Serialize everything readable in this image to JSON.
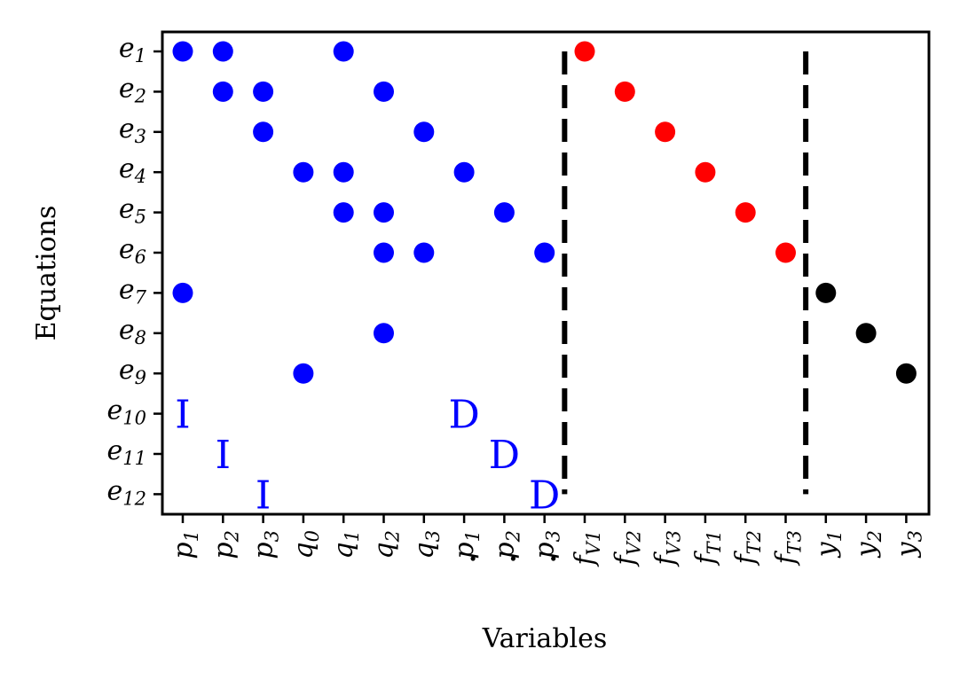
{
  "chart_data": {
    "type": "scatter",
    "xlabel": "Variables",
    "ylabel": "Equations",
    "grid": false,
    "x_categories": [
      {
        "base": "p",
        "sub": "1",
        "dot": false
      },
      {
        "base": "p",
        "sub": "2",
        "dot": false
      },
      {
        "base": "p",
        "sub": "3",
        "dot": false
      },
      {
        "base": "q",
        "sub": "0",
        "dot": false
      },
      {
        "base": "q",
        "sub": "1",
        "dot": false
      },
      {
        "base": "q",
        "sub": "2",
        "dot": false
      },
      {
        "base": "q",
        "sub": "3",
        "dot": false
      },
      {
        "base": "p",
        "sub": "1",
        "dot": true
      },
      {
        "base": "p",
        "sub": "2",
        "dot": true
      },
      {
        "base": "p",
        "sub": "3",
        "dot": true
      },
      {
        "base": "f",
        "sub": "V1",
        "dot": false
      },
      {
        "base": "f",
        "sub": "V2",
        "dot": false
      },
      {
        "base": "f",
        "sub": "V3",
        "dot": false
      },
      {
        "base": "f",
        "sub": "T1",
        "dot": false
      },
      {
        "base": "f",
        "sub": "T2",
        "dot": false
      },
      {
        "base": "f",
        "sub": "T3",
        "dot": false
      },
      {
        "base": "y",
        "sub": "1",
        "dot": false
      },
      {
        "base": "y",
        "sub": "2",
        "dot": false
      },
      {
        "base": "y",
        "sub": "3",
        "dot": false
      }
    ],
    "y_categories": [
      {
        "base": "e",
        "sub": "1"
      },
      {
        "base": "e",
        "sub": "2"
      },
      {
        "base": "e",
        "sub": "3"
      },
      {
        "base": "e",
        "sub": "4"
      },
      {
        "base": "e",
        "sub": "5"
      },
      {
        "base": "e",
        "sub": "6"
      },
      {
        "base": "e",
        "sub": "7"
      },
      {
        "base": "e",
        "sub": "8"
      },
      {
        "base": "e",
        "sub": "9"
      },
      {
        "base": "e",
        "sub": "10"
      },
      {
        "base": "e",
        "sub": "11"
      },
      {
        "base": "e",
        "sub": "12"
      }
    ],
    "colors": {
      "blue": "#0000ff",
      "red": "#ff0000",
      "black": "#000000"
    },
    "points": [
      {
        "x": 0,
        "y": 0,
        "color": "blue"
      },
      {
        "x": 1,
        "y": 0,
        "color": "blue"
      },
      {
        "x": 4,
        "y": 0,
        "color": "blue"
      },
      {
        "x": 10,
        "y": 0,
        "color": "red"
      },
      {
        "x": 1,
        "y": 1,
        "color": "blue"
      },
      {
        "x": 2,
        "y": 1,
        "color": "blue"
      },
      {
        "x": 5,
        "y": 1,
        "color": "blue"
      },
      {
        "x": 11,
        "y": 1,
        "color": "red"
      },
      {
        "x": 2,
        "y": 2,
        "color": "blue"
      },
      {
        "x": 6,
        "y": 2,
        "color": "blue"
      },
      {
        "x": 12,
        "y": 2,
        "color": "red"
      },
      {
        "x": 3,
        "y": 3,
        "color": "blue"
      },
      {
        "x": 4,
        "y": 3,
        "color": "blue"
      },
      {
        "x": 7,
        "y": 3,
        "color": "blue"
      },
      {
        "x": 13,
        "y": 3,
        "color": "red"
      },
      {
        "x": 4,
        "y": 4,
        "color": "blue"
      },
      {
        "x": 5,
        "y": 4,
        "color": "blue"
      },
      {
        "x": 8,
        "y": 4,
        "color": "blue"
      },
      {
        "x": 14,
        "y": 4,
        "color": "red"
      },
      {
        "x": 5,
        "y": 5,
        "color": "blue"
      },
      {
        "x": 6,
        "y": 5,
        "color": "blue"
      },
      {
        "x": 9,
        "y": 5,
        "color": "blue"
      },
      {
        "x": 15,
        "y": 5,
        "color": "red"
      },
      {
        "x": 0,
        "y": 6,
        "color": "blue"
      },
      {
        "x": 16,
        "y": 6,
        "color": "black"
      },
      {
        "x": 5,
        "y": 7,
        "color": "blue"
      },
      {
        "x": 17,
        "y": 7,
        "color": "black"
      },
      {
        "x": 3,
        "y": 8,
        "color": "blue"
      },
      {
        "x": 18,
        "y": 8,
        "color": "black"
      }
    ],
    "annotations": [
      {
        "text": "I",
        "x": 0,
        "y": 9,
        "color": "blue"
      },
      {
        "text": "I",
        "x": 1,
        "y": 10,
        "color": "blue"
      },
      {
        "text": "I",
        "x": 2,
        "y": 11,
        "color": "blue"
      },
      {
        "text": "D",
        "x": 7,
        "y": 9,
        "color": "blue"
      },
      {
        "text": "D",
        "x": 8,
        "y": 10,
        "color": "blue"
      },
      {
        "text": "D",
        "x": 9,
        "y": 11,
        "color": "blue"
      }
    ],
    "dividers": [
      {
        "x": 9.5,
        "y_from": 0,
        "y_to": 11,
        "style": "dashed"
      },
      {
        "x": 15.5,
        "y_from": 0,
        "y_to": 11,
        "style": "dashed"
      }
    ]
  }
}
